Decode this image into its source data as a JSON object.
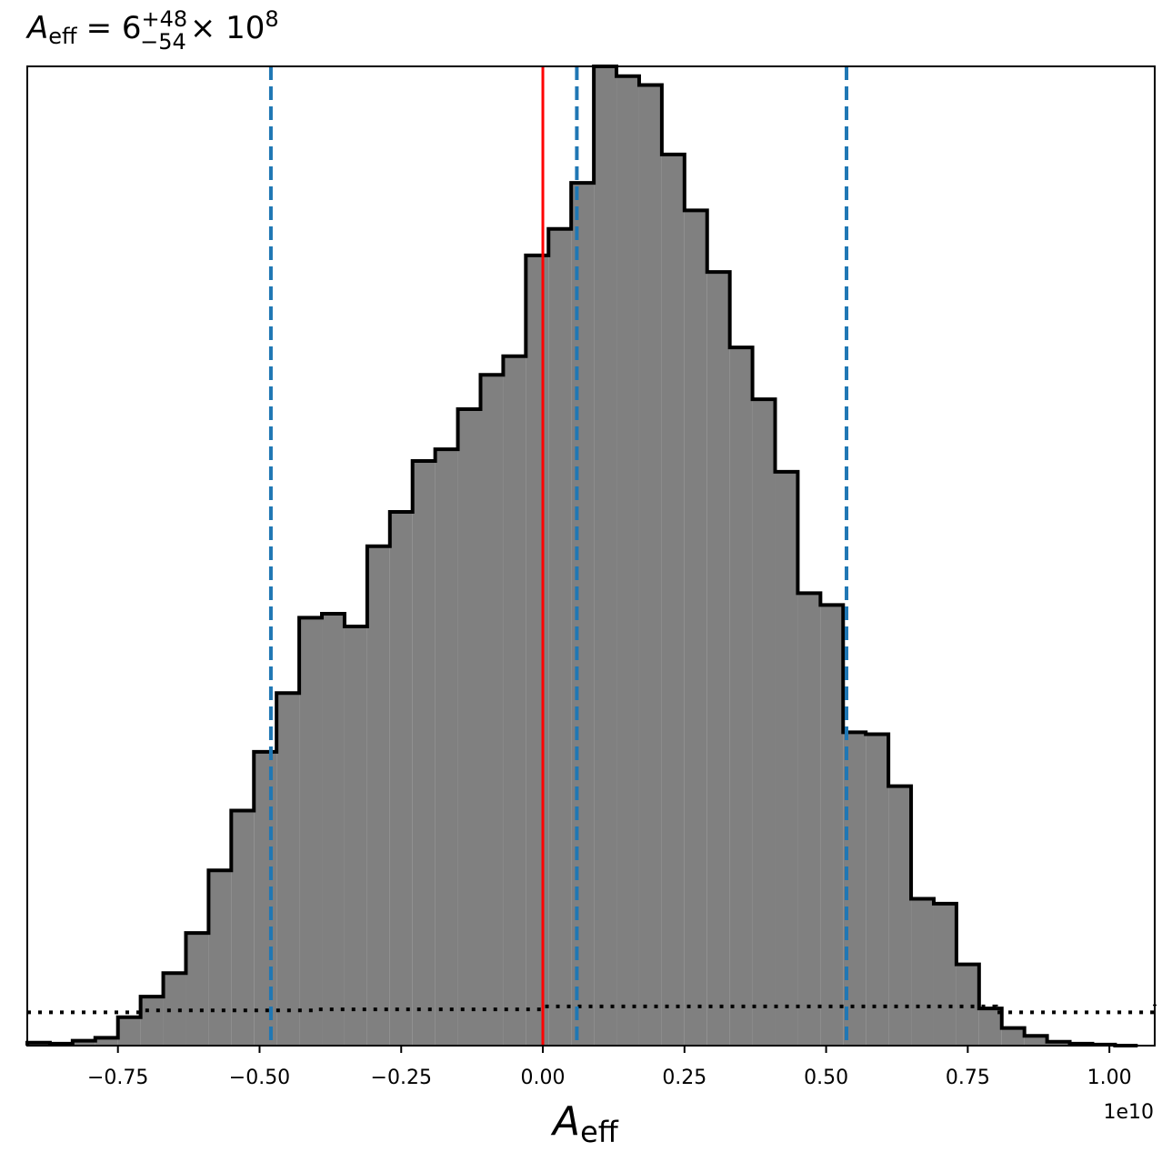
{
  "chart_data": {
    "type": "histogram",
    "title": {
      "symbol": "A",
      "subscript": "eff",
      "equals": "= 6",
      "upper_err": "+48",
      "lower_err": "−54",
      "times": "× 10",
      "exponent": "8"
    },
    "xlabel": {
      "symbol": "A",
      "subscript": "eff"
    },
    "x_offset_label": "1e10",
    "x_scale": 10000000000.0,
    "xlim": [
      -0.91,
      1.08
    ],
    "ylim": [
      0,
      1.0
    ],
    "xticks": [
      -0.75,
      -0.5,
      -0.25,
      0.0,
      0.25,
      0.5,
      0.75,
      1.0
    ],
    "xtick_labels": [
      "−0.75",
      "−0.50",
      "−0.25",
      "0.00",
      "0.25",
      "0.50",
      "0.75",
      "1.00"
    ],
    "grid": false,
    "bin_edges": [
      -0.91,
      -0.87,
      -0.83,
      -0.79,
      -0.75,
      -0.71,
      -0.67,
      -0.63,
      -0.59,
      -0.55,
      -0.51,
      -0.47,
      -0.43,
      -0.39,
      -0.35,
      -0.31,
      -0.27,
      -0.23,
      -0.19,
      -0.15,
      -0.11,
      -0.07,
      -0.03,
      0.01,
      0.05,
      0.09,
      0.13,
      0.17,
      0.21,
      0.25,
      0.29,
      0.33,
      0.37,
      0.41,
      0.45,
      0.49,
      0.53,
      0.57,
      0.61,
      0.65,
      0.69,
      0.73,
      0.77,
      0.81,
      0.85,
      0.89,
      0.93,
      0.97,
      1.01,
      1.05
    ],
    "counts": [
      0.003,
      0.002,
      0.005,
      0.008,
      0.029,
      0.05,
      0.074,
      0.115,
      0.179,
      0.24,
      0.3,
      0.36,
      0.437,
      0.441,
      0.428,
      0.51,
      0.545,
      0.597,
      0.609,
      0.65,
      0.685,
      0.704,
      0.807,
      0.834,
      0.881,
      1.0,
      0.99,
      0.981,
      0.91,
      0.853,
      0.79,
      0.713,
      0.66,
      0.586,
      0.462,
      0.45,
      0.32,
      0.318,
      0.265,
      0.15,
      0.145,
      0.083,
      0.038,
      0.018,
      0.01,
      0.004,
      0.002,
      0.001,
      0.0
    ],
    "prior": {
      "x": [
        -0.91,
        -0.71,
        -0.4,
        0.0,
        0.4,
        0.8,
        1.08
      ],
      "y": [
        0.034,
        0.036,
        0.037,
        0.04,
        0.04,
        0.034,
        0.042
      ]
    },
    "vlines": [
      {
        "x": 0.0,
        "style": "solid",
        "color": "#ff0000"
      },
      {
        "x": -0.48,
        "style": "dashed",
        "color": "#1f77b4"
      },
      {
        "x": 0.06,
        "style": "dashed",
        "color": "#1f77b4"
      },
      {
        "x": 0.536,
        "style": "dashed",
        "color": "#1f77b4"
      }
    ],
    "colors": {
      "fill": "#808080",
      "outline": "#000000",
      "truth": "#ff0000",
      "quantile": "#1f77b4",
      "prior": "#000000"
    }
  }
}
